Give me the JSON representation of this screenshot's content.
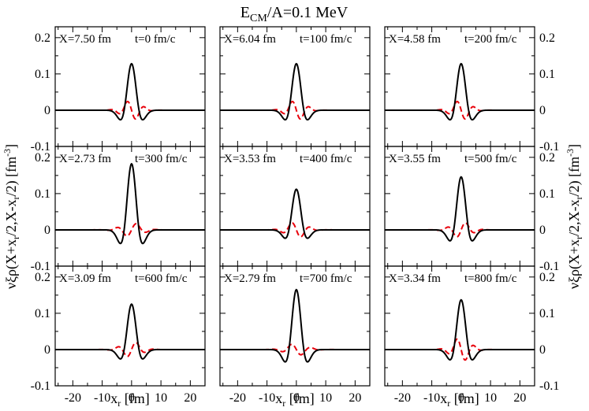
{
  "chart_data": {
    "type": "line",
    "title": "E_CM/A=0.1 MeV",
    "title_main": "E",
    "title_sub": "CM",
    "title_rest": "/A=0.1 MeV",
    "xlabel": "x_r [fm]",
    "xlabel_main": "x",
    "xlabel_sub": "r",
    "xlabel_rest": " [fm]",
    "ylabel": "νξρ(X+x_r/2,X-x_r/2) [fm^-3]",
    "ylabel_parts": {
      "p1": "νξρ(X+x",
      "s1": "r",
      "p2": "/2,X-x",
      "s2": "r",
      "p3": "/2) [fm",
      "sup": "-3",
      "p4": "]"
    },
    "xlim": [
      -26,
      25
    ],
    "ylim": [
      -0.1,
      0.23
    ],
    "xticks": [
      -20,
      -10,
      0,
      10,
      20
    ],
    "xtick_labels": [
      "-20",
      "-10",
      "0",
      "10",
      "20"
    ],
    "yticks": [
      -0.1,
      0,
      0.1,
      0.2
    ],
    "ytick_labels": [
      "-0.1",
      "0",
      "0.1",
      "0.2"
    ],
    "series_styles": [
      {
        "name": "solid",
        "color": "#000000",
        "dash": "none"
      },
      {
        "name": "dashed",
        "color": "#e8000b",
        "dash": "7,4"
      }
    ],
    "panels": [
      {
        "label_x": "X=7.50 fm",
        "label_t": "t=0 fm/c",
        "x_fm": 7.5,
        "t_fmc": 0,
        "solid": {
          "A": 0.128,
          "w": 2.0,
          "B": 0.04
        },
        "dashed": {
          "A": 0.02,
          "s": 2.6,
          "sign": -1
        }
      },
      {
        "label_x": "X=6.04 fm",
        "label_t": "t=100 fm/c",
        "x_fm": 6.04,
        "t_fmc": 100,
        "solid": {
          "A": 0.128,
          "w": 2.0,
          "B": 0.04
        },
        "dashed": {
          "A": 0.02,
          "s": 2.6,
          "sign": -1
        }
      },
      {
        "label_x": "X=4.58 fm",
        "label_t": "t=200 fm/c",
        "x_fm": 4.58,
        "t_fmc": 200,
        "solid": {
          "A": 0.128,
          "w": 2.0,
          "B": 0.04
        },
        "dashed": {
          "A": 0.02,
          "s": 2.6,
          "sign": -1
        }
      },
      {
        "label_x": "X=2.73 fm",
        "label_t": "t=300 fm/c",
        "x_fm": 2.73,
        "t_fmc": 300,
        "solid": {
          "A": 0.182,
          "w": 2.0,
          "B": 0.04
        },
        "dashed": {
          "A": 0.014,
          "s": 3.0,
          "sign": 1
        }
      },
      {
        "label_x": "X=3.53 fm",
        "label_t": "t=400 fm/c",
        "x_fm": 3.53,
        "t_fmc": 400,
        "solid": {
          "A": 0.112,
          "w": 2.0,
          "B": 0.03
        },
        "dashed": {
          "A": 0.016,
          "s": 2.8,
          "sign": -1
        }
      },
      {
        "label_x": "X=3.55 fm",
        "label_t": "t=500 fm/c",
        "x_fm": 3.55,
        "t_fmc": 500,
        "solid": {
          "A": 0.146,
          "w": 2.0,
          "B": 0.035
        },
        "dashed": {
          "A": 0.016,
          "s": 2.8,
          "sign": 1
        }
      },
      {
        "label_x": "X=3.09 fm",
        "label_t": "t=600 fm/c",
        "x_fm": 3.09,
        "t_fmc": 600,
        "solid": {
          "A": 0.125,
          "w": 2.0,
          "B": 0.03
        },
        "dashed": {
          "A": 0.016,
          "s": 2.8,
          "sign": 1
        }
      },
      {
        "label_x": "X=2.79 fm",
        "label_t": "t=700 fm/c",
        "x_fm": 2.79,
        "t_fmc": 700,
        "solid": {
          "A": 0.165,
          "w": 2.0,
          "B": 0.04
        },
        "dashed": {
          "A": 0.012,
          "s": 3.0,
          "sign": -1
        }
      },
      {
        "label_x": "X=3.34 fm",
        "label_t": "t=800 fm/c",
        "x_fm": 3.34,
        "t_fmc": 800,
        "solid": {
          "A": 0.137,
          "w": 2.0,
          "B": 0.03
        },
        "dashed": {
          "A": 0.024,
          "s": 2.6,
          "sign": -1
        }
      }
    ]
  }
}
